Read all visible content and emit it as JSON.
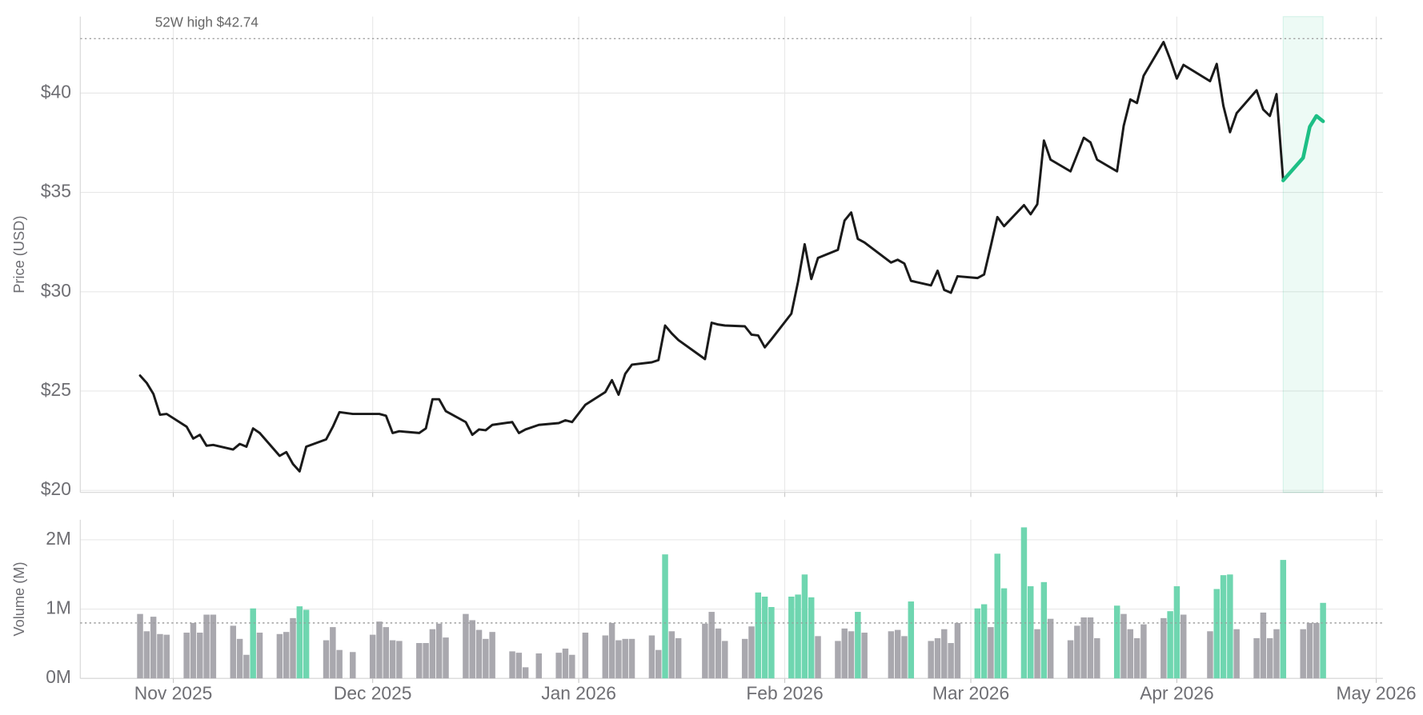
{
  "chart_data": [
    {
      "type": "line",
      "ylabel": "Price (USD)",
      "x": [
        "2025-10-27",
        "2025-10-28",
        "2025-10-29",
        "2025-10-30",
        "2025-10-31",
        "2025-11-03",
        "2025-11-04",
        "2025-11-05",
        "2025-11-06",
        "2025-11-07",
        "2025-11-10",
        "2025-11-11",
        "2025-11-12",
        "2025-11-13",
        "2025-11-14",
        "2025-11-17",
        "2025-11-18",
        "2025-11-19",
        "2025-11-20",
        "2025-11-21",
        "2025-11-24",
        "2025-11-25",
        "2025-11-26",
        "2025-11-28",
        "2025-12-01",
        "2025-12-02",
        "2025-12-03",
        "2025-12-04",
        "2025-12-05",
        "2025-12-08",
        "2025-12-09",
        "2025-12-10",
        "2025-12-11",
        "2025-12-12",
        "2025-12-15",
        "2025-12-16",
        "2025-12-17",
        "2025-12-18",
        "2025-12-19",
        "2025-12-22",
        "2025-12-23",
        "2025-12-24",
        "2025-12-26",
        "2025-12-29",
        "2025-12-30",
        "2025-12-31",
        "2026-01-02",
        "2026-01-05",
        "2026-01-06",
        "2026-01-07",
        "2026-01-08",
        "2026-01-09",
        "2026-01-12",
        "2026-01-13",
        "2026-01-14",
        "2026-01-15",
        "2026-01-16",
        "2026-01-20",
        "2026-01-21",
        "2026-01-22",
        "2026-01-23",
        "2026-01-26",
        "2026-01-27",
        "2026-01-28",
        "2026-01-29",
        "2026-01-30",
        "2026-02-02",
        "2026-02-03",
        "2026-02-04",
        "2026-02-05",
        "2026-02-06",
        "2026-02-09",
        "2026-02-10",
        "2026-02-11",
        "2026-02-12",
        "2026-02-13",
        "2026-02-17",
        "2026-02-18",
        "2026-02-19",
        "2026-02-20",
        "2026-02-23",
        "2026-02-24",
        "2026-02-25",
        "2026-02-26",
        "2026-02-27",
        "2026-03-02",
        "2026-03-03",
        "2026-03-04",
        "2026-03-05",
        "2026-03-06",
        "2026-03-09",
        "2026-03-10",
        "2026-03-11",
        "2026-03-12",
        "2026-03-13",
        "2026-03-16",
        "2026-03-17",
        "2026-03-18",
        "2026-03-19",
        "2026-03-20",
        "2026-03-23",
        "2026-03-24",
        "2026-03-25",
        "2026-03-26",
        "2026-03-27",
        "2026-03-30",
        "2026-03-31",
        "2026-04-01",
        "2026-04-02",
        "2026-04-06",
        "2026-04-07",
        "2026-04-08",
        "2026-04-09",
        "2026-04-10",
        "2026-04-13",
        "2026-04-14",
        "2026-04-15",
        "2026-04-16",
        "2026-04-17",
        "2026-04-20",
        "2026-04-21",
        "2026-04-22",
        "2026-04-23"
      ],
      "series": [
        {
          "color": "#1a1a1a",
          "values": [
            25.78,
            25.41,
            24.86,
            23.81,
            23.85,
            23.21,
            22.61,
            22.8,
            22.25,
            22.29,
            22.06,
            22.34,
            22.2,
            23.12,
            22.89,
            21.74,
            21.93,
            21.33,
            20.96,
            22.2,
            22.57,
            23.2,
            23.94,
            23.85,
            23.85,
            23.85,
            23.76,
            22.89,
            22.98,
            22.89,
            23.12,
            24.59,
            24.59,
            23.99,
            23.44,
            22.8,
            23.07,
            23.03,
            23.3,
            23.44,
            22.89,
            23.07,
            23.3,
            23.39,
            23.53,
            23.44,
            24.31,
            24.95,
            25.55,
            24.82,
            25.87,
            26.33,
            26.45,
            26.56,
            28.3,
            27.9,
            27.57,
            26.61,
            28.44,
            28.35,
            28.3,
            28.26,
            27.84,
            27.8,
            27.2,
            27.61,
            28.9,
            30.5,
            32.39,
            30.64,
            31.7,
            32.11,
            33.58,
            33.99,
            32.66,
            32.48,
            31.47,
            31.61,
            31.42,
            30.55,
            30.32,
            31.06,
            30.09,
            29.95,
            30.78,
            30.69,
            30.87,
            32.29,
            33.76,
            33.3,
            34.36,
            33.9,
            34.4,
            37.61,
            36.65,
            36.06,
            36.9,
            37.75,
            37.52,
            36.65,
            36.06,
            38.35,
            39.68,
            39.5,
            40.87,
            42.57,
            41.7,
            40.73,
            41.42,
            40.6,
            41.47,
            39.36,
            38.03,
            38.99,
            40.14,
            39.17,
            38.85,
            39.95,
            35.6,
            null,
            null,
            null,
            null
          ]
        },
        {
          "color": "#1dbf85",
          "values": [
            null,
            null,
            null,
            null,
            null,
            null,
            null,
            null,
            null,
            null,
            null,
            null,
            null,
            null,
            null,
            null,
            null,
            null,
            null,
            null,
            null,
            null,
            null,
            null,
            null,
            null,
            null,
            null,
            null,
            null,
            null,
            null,
            null,
            null,
            null,
            null,
            null,
            null,
            null,
            null,
            null,
            null,
            null,
            null,
            null,
            null,
            null,
            null,
            null,
            null,
            null,
            null,
            null,
            null,
            null,
            null,
            null,
            null,
            null,
            null,
            null,
            null,
            null,
            null,
            null,
            null,
            null,
            null,
            null,
            null,
            null,
            null,
            null,
            null,
            null,
            null,
            null,
            null,
            null,
            null,
            null,
            null,
            null,
            null,
            null,
            null,
            null,
            null,
            null,
            null,
            null,
            null,
            null,
            null,
            null,
            null,
            null,
            null,
            null,
            null,
            null,
            null,
            null,
            null,
            null,
            null,
            null,
            null,
            null,
            null,
            null,
            null,
            null,
            null,
            null,
            null,
            null,
            null,
            35.6,
            36.74,
            38.3,
            38.85,
            38.58
          ]
        }
      ],
      "xlim": [
        "2025-10-18",
        "2026-05-02"
      ],
      "xticks": [
        "2025-11-01",
        "2025-12-01",
        "2026-01-01",
        "2026-02-01",
        "2026-03-01",
        "2026-04-01",
        "2026-05-01"
      ],
      "ylim": [
        19.9,
        43.85
      ],
      "yticks": [
        {
          "value": 20,
          "label": "$20"
        },
        {
          "value": 25,
          "label": "$25"
        },
        {
          "value": 30,
          "label": "$30"
        },
        {
          "value": 35,
          "label": "$35"
        },
        {
          "value": 40,
          "label": "$40"
        }
      ],
      "reference_lines": [
        {
          "value": 42.74,
          "label": "52W high $42.74"
        }
      ],
      "highlight": {
        "start": "2026-04-17",
        "end": "2026-04-23",
        "color": "#1dbf85"
      },
      "grid": true
    },
    {
      "type": "bar",
      "ylabel": "Volume (M)",
      "x": [
        "2025-10-27",
        "2025-10-28",
        "2025-10-29",
        "2025-10-30",
        "2025-10-31",
        "2025-11-03",
        "2025-11-04",
        "2025-11-05",
        "2025-11-06",
        "2025-11-07",
        "2025-11-10",
        "2025-11-11",
        "2025-11-12",
        "2025-11-13",
        "2025-11-14",
        "2025-11-17",
        "2025-11-18",
        "2025-11-19",
        "2025-11-20",
        "2025-11-21",
        "2025-11-24",
        "2025-11-25",
        "2025-11-26",
        "2025-11-28",
        "2025-12-01",
        "2025-12-02",
        "2025-12-03",
        "2025-12-04",
        "2025-12-05",
        "2025-12-08",
        "2025-12-09",
        "2025-12-10",
        "2025-12-11",
        "2025-12-12",
        "2025-12-15",
        "2025-12-16",
        "2025-12-17",
        "2025-12-18",
        "2025-12-19",
        "2025-12-22",
        "2025-12-23",
        "2025-12-24",
        "2025-12-26",
        "2025-12-29",
        "2025-12-30",
        "2025-12-31",
        "2026-01-02",
        "2026-01-05",
        "2026-01-06",
        "2026-01-07",
        "2026-01-08",
        "2026-01-09",
        "2026-01-12",
        "2026-01-13",
        "2026-01-14",
        "2026-01-15",
        "2026-01-16",
        "2026-01-20",
        "2026-01-21",
        "2026-01-22",
        "2026-01-23",
        "2026-01-26",
        "2026-01-27",
        "2026-01-28",
        "2026-01-29",
        "2026-01-30",
        "2026-02-02",
        "2026-02-03",
        "2026-02-04",
        "2026-02-05",
        "2026-02-06",
        "2026-02-09",
        "2026-02-10",
        "2026-02-11",
        "2026-02-12",
        "2026-02-13",
        "2026-02-17",
        "2026-02-18",
        "2026-02-19",
        "2026-02-20",
        "2026-02-23",
        "2026-02-24",
        "2026-02-25",
        "2026-02-26",
        "2026-02-27",
        "2026-03-02",
        "2026-03-03",
        "2026-03-04",
        "2026-03-05",
        "2026-03-06",
        "2026-03-09",
        "2026-03-10",
        "2026-03-11",
        "2026-03-12",
        "2026-03-13",
        "2026-03-16",
        "2026-03-17",
        "2026-03-18",
        "2026-03-19",
        "2026-03-20",
        "2026-03-23",
        "2026-03-24",
        "2026-03-25",
        "2026-03-26",
        "2026-03-27",
        "2026-03-30",
        "2026-03-31",
        "2026-04-01",
        "2026-04-02",
        "2026-04-06",
        "2026-04-07",
        "2026-04-08",
        "2026-04-09",
        "2026-04-10",
        "2026-04-13",
        "2026-04-14",
        "2026-04-15",
        "2026-04-16",
        "2026-04-17",
        "2026-04-20",
        "2026-04-21",
        "2026-04-22",
        "2026-04-23"
      ],
      "values": [
        0.93,
        0.68,
        0.89,
        0.64,
        0.63,
        0.66,
        0.8,
        0.66,
        0.92,
        0.92,
        0.76,
        0.57,
        0.34,
        1.01,
        0.66,
        0.64,
        0.67,
        0.87,
        1.04,
        0.99,
        0.55,
        0.74,
        0.41,
        0.38,
        0.63,
        0.82,
        0.74,
        0.55,
        0.54,
        0.51,
        0.51,
        0.71,
        0.79,
        0.59,
        0.93,
        0.84,
        0.7,
        0.57,
        0.67,
        0.39,
        0.37,
        0.16,
        0.36,
        0.37,
        0.43,
        0.34,
        0.66,
        0.62,
        0.8,
        0.55,
        0.57,
        0.57,
        0.62,
        0.41,
        1.79,
        0.68,
        0.58,
        0.79,
        0.96,
        0.72,
        0.54,
        0.57,
        0.75,
        1.24,
        1.18,
        1.03,
        1.18,
        1.21,
        1.5,
        1.17,
        0.61,
        0.54,
        0.72,
        0.68,
        0.96,
        0.66,
        0.68,
        0.7,
        0.61,
        1.11,
        0.54,
        0.58,
        0.71,
        0.51,
        0.8,
        1.01,
        1.07,
        0.74,
        1.8,
        1.3,
        2.18,
        1.33,
        0.71,
        1.39,
        0.86,
        0.55,
        0.76,
        0.88,
        0.88,
        0.58,
        1.05,
        0.93,
        0.71,
        0.58,
        0.78,
        0.87,
        0.97,
        1.33,
        0.92,
        0.68,
        1.29,
        1.49,
        1.5,
        0.71,
        0.58,
        0.95,
        0.58,
        0.71,
        1.71,
        0.71,
        0.8,
        0.8,
        1.09
      ],
      "bar_colors": [
        "#a9a8ae",
        "#a9a8ae",
        "#a9a8ae",
        "#a9a8ae",
        "#a9a8ae",
        "#a9a8ae",
        "#a9a8ae",
        "#a9a8ae",
        "#a9a8ae",
        "#a9a8ae",
        "#a9a8ae",
        "#a9a8ae",
        "#a9a8ae",
        "#6fd6b0",
        "#a9a8ae",
        "#a9a8ae",
        "#a9a8ae",
        "#a9a8ae",
        "#6fd6b0",
        "#6fd6b0",
        "#a9a8ae",
        "#a9a8ae",
        "#a9a8ae",
        "#a9a8ae",
        "#a9a8ae",
        "#a9a8ae",
        "#a9a8ae",
        "#a9a8ae",
        "#a9a8ae",
        "#a9a8ae",
        "#a9a8ae",
        "#a9a8ae",
        "#a9a8ae",
        "#a9a8ae",
        "#a9a8ae",
        "#a9a8ae",
        "#a9a8ae",
        "#a9a8ae",
        "#a9a8ae",
        "#a9a8ae",
        "#a9a8ae",
        "#a9a8ae",
        "#a9a8ae",
        "#a9a8ae",
        "#a9a8ae",
        "#a9a8ae",
        "#a9a8ae",
        "#a9a8ae",
        "#a9a8ae",
        "#a9a8ae",
        "#a9a8ae",
        "#a9a8ae",
        "#a9a8ae",
        "#a9a8ae",
        "#6fd6b0",
        "#a9a8ae",
        "#a9a8ae",
        "#a9a8ae",
        "#a9a8ae",
        "#a9a8ae",
        "#a9a8ae",
        "#a9a8ae",
        "#a9a8ae",
        "#6fd6b0",
        "#6fd6b0",
        "#6fd6b0",
        "#6fd6b0",
        "#6fd6b0",
        "#6fd6b0",
        "#6fd6b0",
        "#a9a8ae",
        "#a9a8ae",
        "#a9a8ae",
        "#a9a8ae",
        "#6fd6b0",
        "#a9a8ae",
        "#a9a8ae",
        "#a9a8ae",
        "#a9a8ae",
        "#6fd6b0",
        "#a9a8ae",
        "#a9a8ae",
        "#a9a8ae",
        "#a9a8ae",
        "#a9a8ae",
        "#6fd6b0",
        "#6fd6b0",
        "#a9a8ae",
        "#6fd6b0",
        "#6fd6b0",
        "#6fd6b0",
        "#6fd6b0",
        "#a9a8ae",
        "#6fd6b0",
        "#a9a8ae",
        "#a9a8ae",
        "#a9a8ae",
        "#a9a8ae",
        "#a9a8ae",
        "#a9a8ae",
        "#6fd6b0",
        "#a9a8ae",
        "#a9a8ae",
        "#a9a8ae",
        "#a9a8ae",
        "#a9a8ae",
        "#6fd6b0",
        "#6fd6b0",
        "#a9a8ae",
        "#a9a8ae",
        "#6fd6b0",
        "#6fd6b0",
        "#6fd6b0",
        "#a9a8ae",
        "#a9a8ae",
        "#a9a8ae",
        "#a9a8ae",
        "#a9a8ae",
        "#6fd6b0",
        "#a9a8ae",
        "#a9a8ae",
        "#a9a8ae",
        "#6fd6b0"
      ],
      "xlim": [
        "2025-10-18",
        "2026-05-02"
      ],
      "xticks": [
        {
          "value": "2025-11-01",
          "label": "Nov 2025"
        },
        {
          "value": "2025-12-01",
          "label": "Dec 2025"
        },
        {
          "value": "2026-01-01",
          "label": "Jan 2026"
        },
        {
          "value": "2026-02-01",
          "label": "Feb 2026"
        },
        {
          "value": "2026-03-01",
          "label": "Mar 2026"
        },
        {
          "value": "2026-04-01",
          "label": "Apr 2026"
        },
        {
          "value": "2026-05-01",
          "label": "May 2026"
        }
      ],
      "ylim": [
        0,
        2.29
      ],
      "yticks": [
        {
          "value": 0,
          "label": "0M"
        },
        {
          "value": 1,
          "label": "1M"
        },
        {
          "value": 2,
          "label": "2M"
        }
      ],
      "reference_lines": [
        {
          "value": 0.8
        }
      ],
      "grid": true
    }
  ]
}
